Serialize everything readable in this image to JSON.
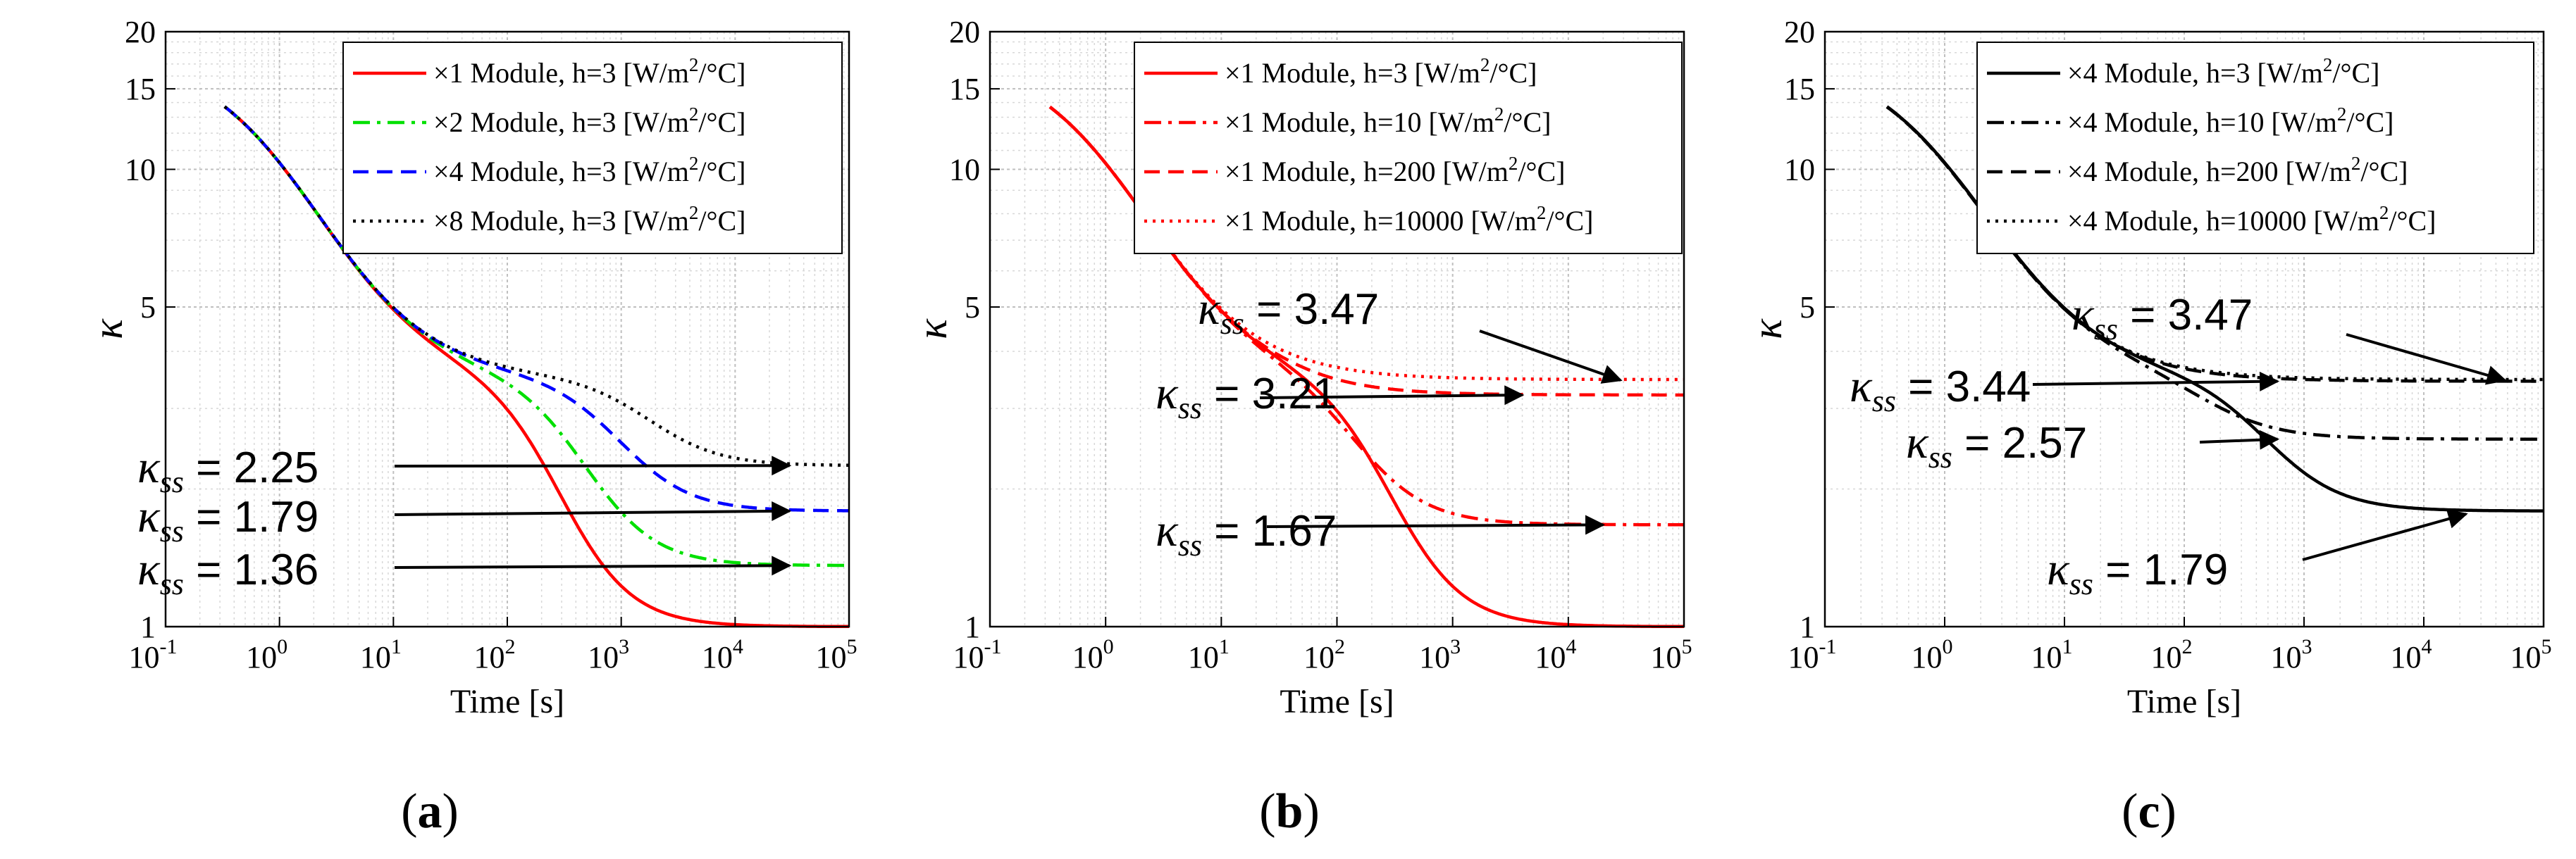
{
  "chart_data": [
    {
      "type": "line",
      "panel_label": "a",
      "xlabel": "Time [s]",
      "ylabel": "κ",
      "xscale": "log",
      "yscale": "log",
      "xlim": [
        0.1,
        100000
      ],
      "ylim": [
        1,
        20
      ],
      "xticks": [
        "10-1",
        "100",
        "101",
        "102",
        "103",
        "104",
        "105"
      ],
      "yticks": [
        "1",
        "5",
        "10",
        "15",
        "20"
      ],
      "legend_position": "top-right",
      "series": [
        {
          "name": "×1 Module, h=3 [W/m2/°C]",
          "legend_prefix": "×1 Module, h=3 [W/m",
          "color": "#ff0000",
          "dash": "solid",
          "steady_state": 1.0,
          "plateau": 3.5,
          "t_mid": 300
        },
        {
          "name": "×2 Module, h=3 [W/m2/°C]",
          "legend_prefix": "×2 Module, h=3 [W/m",
          "color": "#00e000",
          "dash": "dashdot",
          "steady_state": 1.36,
          "plateau": 3.5,
          "t_mid": 500
        },
        {
          "name": "×4 Module, h=3 [W/m2/°C]",
          "legend_prefix": "×4 Module, h=3 [W/m",
          "color": "#0000ff",
          "dash": "dashed",
          "steady_state": 1.79,
          "plateau": 3.5,
          "t_mid": 1000
        },
        {
          "name": "×8 Module, h=3 [W/m2/°C]",
          "legend_prefix": "×8 Module, h=3 [W/m",
          "color": "#000000",
          "dash": "dotted",
          "steady_state": 2.25,
          "plateau": 3.5,
          "t_mid": 1800
        }
      ],
      "annotations": [
        {
          "sym": "κ",
          "sub": "ss",
          "text": " = 2.25",
          "value": 2.25
        },
        {
          "sym": "κ",
          "sub": "ss",
          "text": " = 1.79",
          "value": 1.79
        },
        {
          "sym": "κ",
          "sub": "ss",
          "text": " = 1.36",
          "value": 1.36
        }
      ]
    },
    {
      "type": "line",
      "panel_label": "b",
      "xlabel": "Time [s]",
      "ylabel": "κ",
      "xscale": "log",
      "yscale": "log",
      "xlim": [
        0.1,
        100000
      ],
      "ylim": [
        1,
        20
      ],
      "xticks": [
        "10-1",
        "100",
        "101",
        "102",
        "103",
        "104",
        "105"
      ],
      "yticks": [
        "1",
        "5",
        "10",
        "15",
        "20"
      ],
      "legend_position": "top-right",
      "series": [
        {
          "name": "×1 Module, h=3 [W/m2/°C]",
          "legend_prefix": "×1 Module, h=3 [W/m",
          "color": "#ff0000",
          "dash": "solid",
          "steady_state": 1.0,
          "plateau": 3.47,
          "t_mid": 300
        },
        {
          "name": "×1 Module, h=10 [W/m2/°C]",
          "legend_prefix": "×1 Module, h=10 [W/m",
          "color": "#ff0000",
          "dash": "dashdot",
          "steady_state": 1.67,
          "plateau": 3.47,
          "t_mid": 150
        },
        {
          "name": "×1 Module, h=200 [W/m2/°C]",
          "legend_prefix": "×1 Module, h=200 [W/m",
          "color": "#ff0000",
          "dash": "dashed",
          "steady_state": 3.21,
          "plateau": 3.47,
          "t_mid": 40
        },
        {
          "name": "×1 Module, h=10000 [W/m2/°C]",
          "legend_prefix": "×1 Module, h=10000 [W/m",
          "color": "#ff0000",
          "dash": "dotted",
          "steady_state": 3.47,
          "plateau": 3.47,
          "t_mid": 40
        }
      ],
      "annotations": [
        {
          "sym": "κ",
          "sub": "ss",
          "text": " = 3.47",
          "value": 3.47
        },
        {
          "sym": "κ",
          "sub": "ss",
          "text": " = 3.21",
          "value": 3.21
        },
        {
          "sym": "κ",
          "sub": "ss",
          "text": " = 1.67",
          "value": 1.67
        }
      ]
    },
    {
      "type": "line",
      "panel_label": "c",
      "xlabel": "Time [s]",
      "ylabel": "κ",
      "xscale": "log",
      "yscale": "log",
      "xlim": [
        0.1,
        100000
      ],
      "ylim": [
        1,
        20
      ],
      "xticks": [
        "10-1",
        "100",
        "101",
        "102",
        "103",
        "104",
        "105"
      ],
      "yticks": [
        "1",
        "5",
        "10",
        "15",
        "20"
      ],
      "legend_position": "top-right",
      "series": [
        {
          "name": "×4 Module, h=3 [W/m2/°C]",
          "legend_prefix": "×4 Module, h=3 [W/m",
          "color": "#000000",
          "dash": "solid",
          "steady_state": 1.79,
          "plateau": 3.5,
          "t_mid": 500
        },
        {
          "name": "×4 Module, h=10 [W/m2/°C]",
          "legend_prefix": "×4 Module, h=10 [W/m",
          "color": "#000000",
          "dash": "dashdot",
          "steady_state": 2.57,
          "plateau": 3.5,
          "t_mid": 150
        },
        {
          "name": "×4 Module, h=200 [W/m2/°C]",
          "legend_prefix": "×4 Module, h=200 [W/m",
          "color": "#000000",
          "dash": "dashed",
          "steady_state": 3.44,
          "plateau": 3.47,
          "t_mid": 40
        },
        {
          "name": "×4 Module, h=10000 [W/m2/°C]",
          "legend_prefix": "×4 Module, h=10000 [W/m",
          "color": "#000000",
          "dash": "dotted",
          "steady_state": 3.47,
          "plateau": 3.47,
          "t_mid": 40
        }
      ],
      "annotations": [
        {
          "sym": "κ",
          "sub": "ss",
          "text": " = 3.47",
          "value": 3.47
        },
        {
          "sym": "κ",
          "sub": "ss",
          "text": " = 3.44",
          "value": 3.44
        },
        {
          "sym": "κ",
          "sub": "ss",
          "text": " = 2.57",
          "value": 2.57
        },
        {
          "sym": "κ",
          "sub": "ss",
          "text": " = 1.79",
          "value": 1.79
        }
      ]
    }
  ],
  "legend_suffix": "/°C]",
  "legend_sup": "2"
}
